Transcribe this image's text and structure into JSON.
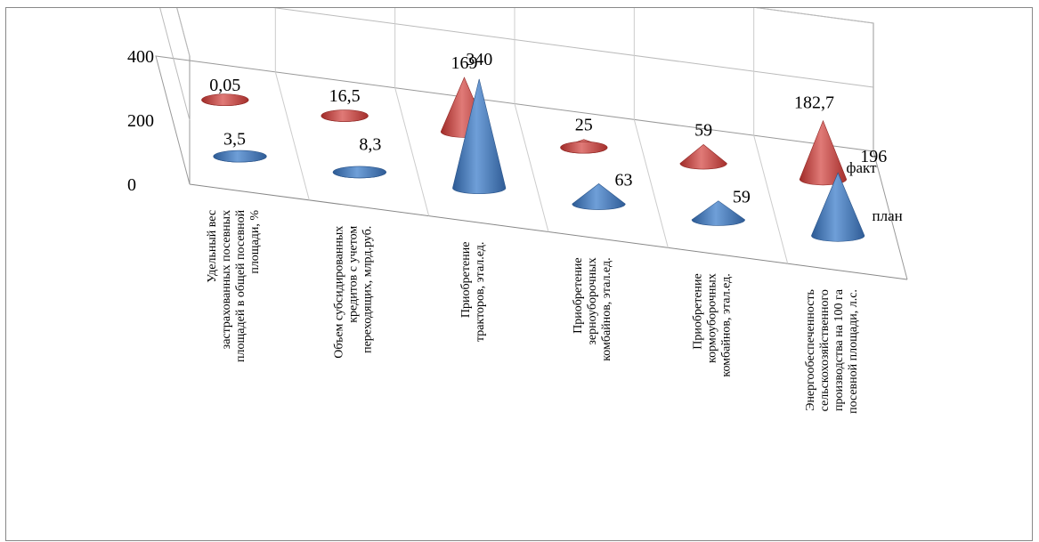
{
  "chart_data": {
    "type": "bar",
    "shape": "cone-3d",
    "categories": [
      [
        "Удельный вес",
        "застрахованных посевных",
        "площадей в общей посевной",
        "площади, %"
      ],
      [
        "Объем субсидированных",
        "кредитов с учетом",
        "переходящих, млрд.руб."
      ],
      [
        "Приобретение",
        "тракторов, этал.ед."
      ],
      [
        "Приобретение",
        "зерноуборочных",
        "комбайнов, этал.ед."
      ],
      [
        "Приобретение",
        "кормоуборочных",
        "комбайнов, этал.ед."
      ],
      [
        "Энергообеспеченность",
        "сельскохозяйственного",
        "производства на 100 га",
        "посевной площади, л.с."
      ]
    ],
    "series": [
      {
        "name": "факт",
        "color": "#c0504d",
        "values": [
          0.05,
          16.5,
          169,
          25,
          59,
          182.7
        ],
        "labels": [
          "0,05",
          "16,5",
          "169",
          "25",
          "59",
          "182,7"
        ]
      },
      {
        "name": "план",
        "color": "#4f81bd",
        "values": [
          3.5,
          8.3,
          340,
          63,
          59,
          196
        ],
        "labels": [
          "3,5",
          "8,3",
          "340",
          "63",
          "59",
          "196"
        ]
      }
    ],
    "yticks": [
      "0",
      "200",
      "400"
    ],
    "ylim": [
      0,
      400
    ],
    "grid": true,
    "legend": "depth axis"
  }
}
